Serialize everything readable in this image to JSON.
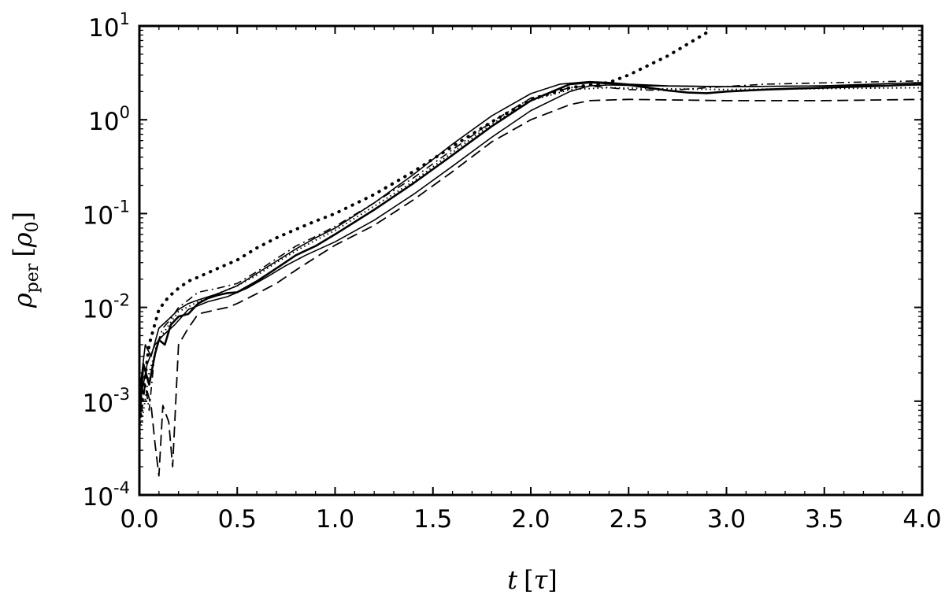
{
  "chart_data": {
    "type": "line",
    "x_scale": "linear",
    "y_scale": "log",
    "xlim": [
      0.0,
      4.0
    ],
    "ylim": [
      0.0001,
      10
    ],
    "grid": false,
    "legend": "none",
    "xlabel": {
      "symbol": "t",
      "unit_open": "[",
      "unit": "τ",
      "unit_close": "]"
    },
    "ylabel": {
      "symbol": "ρ",
      "subscript": "per",
      "unit_open": "[",
      "unit": "ρ",
      "unit_sub": "0",
      "unit_close": "]"
    },
    "xticks": [
      "0.0",
      "0.5",
      "1.0",
      "1.5",
      "2.0",
      "2.5",
      "3.0",
      "3.5",
      "4.0"
    ],
    "yticks": [
      {
        "base": "10",
        "exp": "-4"
      },
      {
        "base": "10",
        "exp": "-3"
      },
      {
        "base": "10",
        "exp": "-2"
      },
      {
        "base": "10",
        "exp": "-1"
      },
      {
        "base": "10",
        "exp": "0"
      },
      {
        "base": "10",
        "exp": "1"
      }
    ],
    "series": [
      {
        "style": "solid-thick",
        "points": [
          [
            0.0,
            0.0006
          ],
          [
            0.02,
            0.0025
          ],
          [
            0.05,
            0.0015
          ],
          [
            0.08,
            0.0032
          ],
          [
            0.1,
            0.0045
          ],
          [
            0.13,
            0.004
          ],
          [
            0.16,
            0.0065
          ],
          [
            0.2,
            0.008
          ],
          [
            0.25,
            0.0085
          ],
          [
            0.3,
            0.011
          ],
          [
            0.35,
            0.0125
          ],
          [
            0.4,
            0.0135
          ],
          [
            0.45,
            0.0142
          ],
          [
            0.5,
            0.0145
          ],
          [
            0.6,
            0.019
          ],
          [
            0.7,
            0.026
          ],
          [
            0.8,
            0.036
          ],
          [
            0.9,
            0.045
          ],
          [
            1.0,
            0.06
          ],
          [
            1.2,
            0.11
          ],
          [
            1.4,
            0.21
          ],
          [
            1.6,
            0.42
          ],
          [
            1.8,
            0.85
          ],
          [
            2.0,
            1.6
          ],
          [
            2.2,
            2.4
          ],
          [
            2.3,
            2.5
          ],
          [
            2.4,
            2.45
          ],
          [
            2.5,
            2.35
          ],
          [
            2.6,
            2.2
          ],
          [
            2.7,
            2.05
          ],
          [
            2.8,
            1.95
          ],
          [
            2.9,
            1.92
          ],
          [
            3.0,
            2.0
          ],
          [
            3.2,
            2.1
          ],
          [
            3.5,
            2.2
          ],
          [
            3.8,
            2.3
          ],
          [
            4.0,
            2.4
          ]
        ]
      },
      {
        "style": "solid-thin",
        "points": [
          [
            0.0,
            0.0012
          ],
          [
            0.03,
            0.004
          ],
          [
            0.06,
            0.003
          ],
          [
            0.1,
            0.006
          ],
          [
            0.15,
            0.0075
          ],
          [
            0.2,
            0.0095
          ],
          [
            0.25,
            0.011
          ],
          [
            0.3,
            0.012
          ],
          [
            0.4,
            0.014
          ],
          [
            0.5,
            0.017
          ],
          [
            0.6,
            0.023
          ],
          [
            0.7,
            0.031
          ],
          [
            0.8,
            0.042
          ],
          [
            0.9,
            0.055
          ],
          [
            1.0,
            0.07
          ],
          [
            1.2,
            0.13
          ],
          [
            1.4,
            0.26
          ],
          [
            1.6,
            0.55
          ],
          [
            1.8,
            1.1
          ],
          [
            2.0,
            1.9
          ],
          [
            2.15,
            2.4
          ],
          [
            2.3,
            2.55
          ],
          [
            2.4,
            2.5
          ],
          [
            2.5,
            2.4
          ],
          [
            2.7,
            2.3
          ],
          [
            3.0,
            2.25
          ],
          [
            3.5,
            2.3
          ],
          [
            4.0,
            2.5
          ]
        ]
      },
      {
        "style": "solid-thin",
        "points": [
          [
            0.0,
            0.0009
          ],
          [
            0.04,
            0.0025
          ],
          [
            0.08,
            0.004
          ],
          [
            0.12,
            0.005
          ],
          [
            0.18,
            0.0065
          ],
          [
            0.25,
            0.0095
          ],
          [
            0.35,
            0.0115
          ],
          [
            0.45,
            0.013
          ],
          [
            0.55,
            0.016
          ],
          [
            0.65,
            0.021
          ],
          [
            0.75,
            0.028
          ],
          [
            0.85,
            0.036
          ],
          [
            1.0,
            0.05
          ],
          [
            1.2,
            0.085
          ],
          [
            1.4,
            0.16
          ],
          [
            1.6,
            0.32
          ],
          [
            1.8,
            0.65
          ],
          [
            2.0,
            1.25
          ],
          [
            2.2,
            2.0
          ],
          [
            2.3,
            2.3
          ],
          [
            2.4,
            2.35
          ],
          [
            2.6,
            2.3
          ],
          [
            3.0,
            2.25
          ],
          [
            3.5,
            2.3
          ],
          [
            4.0,
            2.35
          ]
        ]
      },
      {
        "style": "dashed",
        "points": [
          [
            0.0,
            0.0008
          ],
          [
            0.03,
            0.0015
          ],
          [
            0.06,
            0.0009
          ],
          [
            0.08,
            0.00035
          ],
          [
            0.1,
            0.00016
          ],
          [
            0.12,
            0.0009
          ],
          [
            0.15,
            0.0006
          ],
          [
            0.17,
            0.0002
          ],
          [
            0.2,
            0.004
          ],
          [
            0.25,
            0.006
          ],
          [
            0.3,
            0.0085
          ],
          [
            0.35,
            0.009
          ],
          [
            0.4,
            0.0095
          ],
          [
            0.45,
            0.01
          ],
          [
            0.5,
            0.011
          ],
          [
            0.6,
            0.014
          ],
          [
            0.7,
            0.018
          ],
          [
            0.8,
            0.025
          ],
          [
            0.9,
            0.034
          ],
          [
            1.0,
            0.046
          ],
          [
            1.2,
            0.075
          ],
          [
            1.4,
            0.14
          ],
          [
            1.6,
            0.28
          ],
          [
            1.8,
            0.58
          ],
          [
            2.0,
            1.0
          ],
          [
            2.2,
            1.45
          ],
          [
            2.3,
            1.6
          ],
          [
            2.5,
            1.65
          ],
          [
            3.0,
            1.6
          ],
          [
            3.5,
            1.6
          ],
          [
            4.0,
            1.65
          ]
        ]
      },
      {
        "style": "dashdot",
        "points": [
          [
            0.0,
            0.0005
          ],
          [
            0.03,
            0.0015
          ],
          [
            0.05,
            0.0008
          ],
          [
            0.08,
            0.0035
          ],
          [
            0.12,
            0.006
          ],
          [
            0.16,
            0.0075
          ],
          [
            0.2,
            0.01
          ],
          [
            0.25,
            0.012
          ],
          [
            0.3,
            0.0145
          ],
          [
            0.4,
            0.016
          ],
          [
            0.5,
            0.018
          ],
          [
            0.6,
            0.024
          ],
          [
            0.7,
            0.033
          ],
          [
            0.8,
            0.045
          ],
          [
            0.9,
            0.057
          ],
          [
            1.0,
            0.073
          ],
          [
            1.2,
            0.13
          ],
          [
            1.4,
            0.24
          ],
          [
            1.6,
            0.48
          ],
          [
            1.8,
            0.95
          ],
          [
            2.0,
            1.7
          ],
          [
            2.2,
            2.2
          ],
          [
            2.3,
            2.3
          ],
          [
            2.5,
            2.1
          ],
          [
            2.7,
            2.05
          ],
          [
            2.9,
            2.2
          ],
          [
            3.2,
            2.4
          ],
          [
            3.6,
            2.5
          ],
          [
            4.0,
            2.6
          ]
        ]
      },
      {
        "style": "dotted",
        "points": [
          [
            0.0,
            0.0006
          ],
          [
            0.05,
            0.004
          ],
          [
            0.1,
            0.0095
          ],
          [
            0.15,
            0.013
          ],
          [
            0.2,
            0.016
          ],
          [
            0.25,
            0.019
          ],
          [
            0.3,
            0.021
          ],
          [
            0.4,
            0.026
          ],
          [
            0.5,
            0.032
          ],
          [
            0.6,
            0.043
          ],
          [
            0.7,
            0.055
          ],
          [
            0.8,
            0.068
          ],
          [
            0.9,
            0.083
          ],
          [
            1.0,
            0.1
          ],
          [
            1.2,
            0.16
          ],
          [
            1.4,
            0.28
          ],
          [
            1.6,
            0.52
          ],
          [
            1.8,
            0.95
          ],
          [
            2.0,
            1.65
          ],
          [
            2.2,
            2.2
          ],
          [
            2.4,
            2.5
          ],
          [
            2.5,
            3.0
          ],
          [
            2.7,
            4.8
          ],
          [
            2.9,
            8.5
          ]
        ]
      },
      {
        "style": "dotted-fine",
        "points": [
          [
            0.0,
            0.0004
          ],
          [
            0.05,
            0.002
          ],
          [
            0.1,
            0.0045
          ],
          [
            0.15,
            0.0065
          ],
          [
            0.2,
            0.009
          ],
          [
            0.3,
            0.0115
          ],
          [
            0.4,
            0.014
          ],
          [
            0.5,
            0.017
          ],
          [
            0.6,
            0.022
          ],
          [
            0.7,
            0.03
          ],
          [
            0.8,
            0.04
          ],
          [
            0.9,
            0.052
          ],
          [
            1.0,
            0.066
          ],
          [
            1.2,
            0.12
          ],
          [
            1.4,
            0.22
          ],
          [
            1.6,
            0.45
          ],
          [
            1.8,
            0.9
          ],
          [
            2.0,
            1.6
          ],
          [
            2.2,
            2.1
          ],
          [
            2.4,
            2.2
          ],
          [
            2.6,
            2.15
          ],
          [
            3.0,
            2.1
          ],
          [
            3.5,
            2.15
          ],
          [
            4.0,
            2.2
          ]
        ]
      }
    ]
  }
}
